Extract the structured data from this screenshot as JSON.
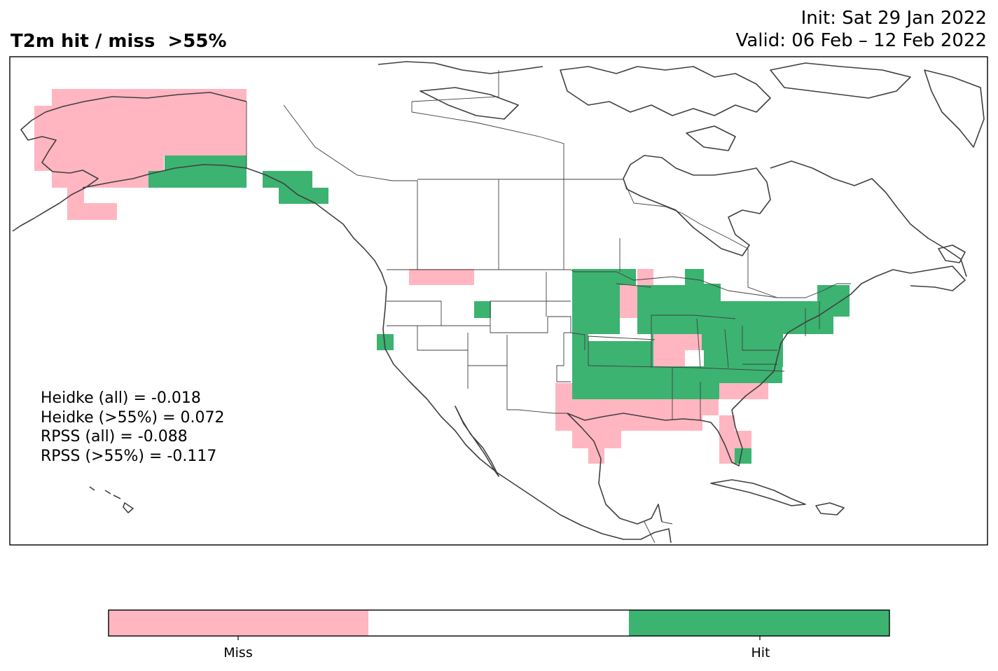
{
  "title": "T2m hit / miss  >55%",
  "init": "Init: Sat 29 Jan 2022",
  "valid": "Valid: 06 Feb – 12 Feb 2022",
  "stats": [
    "Heidke (all) = -0.018",
    "Heidke (>55%) = 0.072",
    "RPSS (all) = -0.088",
    "RPSS (>55%) = -0.117"
  ],
  "colorbar": {
    "categories": [
      "Miss",
      "",
      "Hit"
    ],
    "colors": [
      "#ffb6c1",
      "#ffffff",
      "#3cb371"
    ],
    "tick_labels": [
      "Miss",
      "Hit"
    ]
  },
  "colors": {
    "miss": "#ffb6c1",
    "hit": "#3cb371",
    "coast": "#404040"
  }
}
